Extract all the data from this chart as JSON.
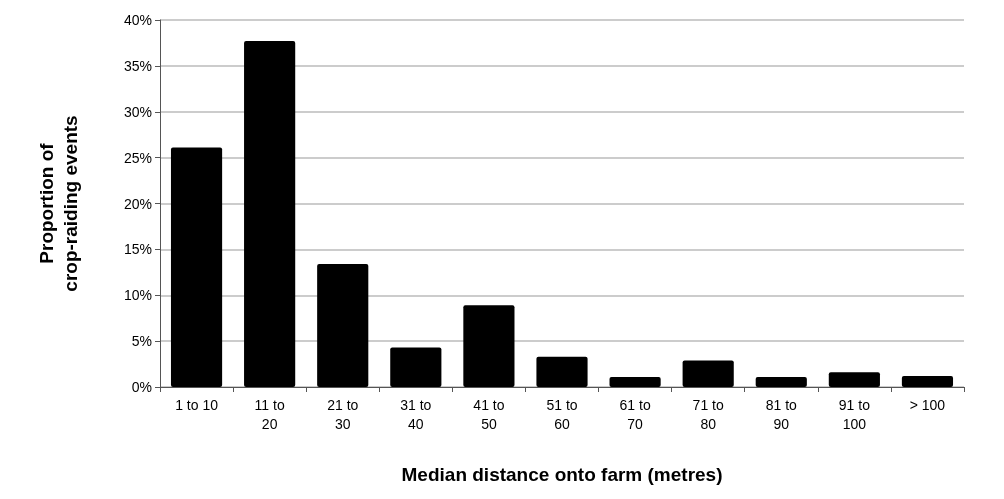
{
  "chart_data": {
    "type": "bar",
    "xlabel": "Median distance onto farm (metres)",
    "ylabel": "Proportion of\ncrop-raiding events",
    "categories": [
      "1 to 10",
      "11 to\n20",
      "21 to\n30",
      "31 to\n40",
      "41 to\n50",
      "51 to\n60",
      "61 to\n70",
      "71 to\n80",
      "81 to\n90",
      "91 to\n100",
      "> 100"
    ],
    "values": [
      26.1,
      37.7,
      13.4,
      4.3,
      8.9,
      3.3,
      1.1,
      2.9,
      1.1,
      1.6,
      1.2
    ],
    "color": "#000000",
    "ylim": [
      0,
      40
    ],
    "yticks": [
      {
        "value": 0,
        "label": "0%"
      },
      {
        "value": 5,
        "label": "5%"
      },
      {
        "value": 10,
        "label": "10%"
      },
      {
        "value": 15,
        "label": "15%"
      },
      {
        "value": 20,
        "label": "20%"
      },
      {
        "value": 25,
        "label": "25%"
      },
      {
        "value": 30,
        "label": "30%"
      },
      {
        "value": 35,
        "label": "35%"
      },
      {
        "value": 40,
        "label": "40%"
      }
    ],
    "grid": "y"
  }
}
